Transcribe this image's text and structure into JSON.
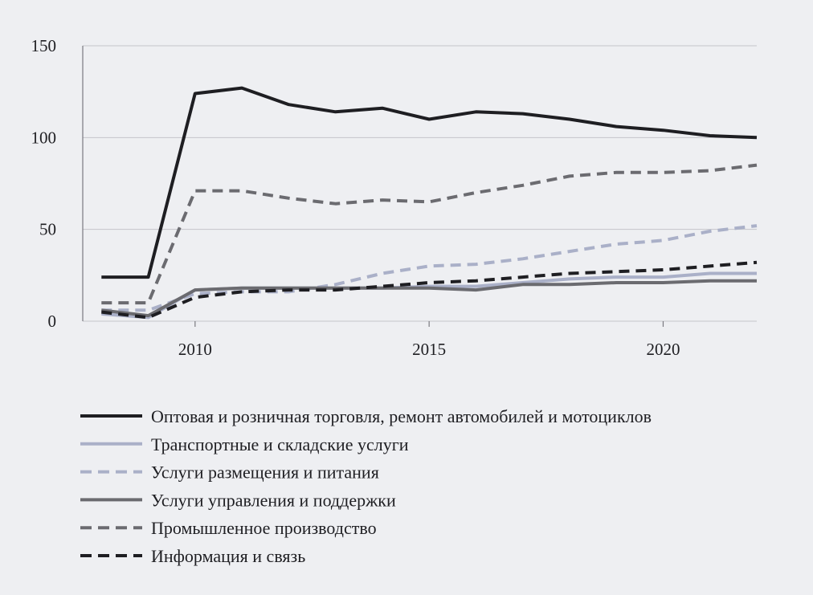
{
  "chart_data": {
    "type": "line",
    "title": "",
    "xlabel": "",
    "ylabel": "",
    "xlim": [
      2007.6,
      2022
    ],
    "ylim": [
      0,
      150
    ],
    "x_ticks": [
      "2010",
      "2015",
      "2020"
    ],
    "y_ticks": [
      "0",
      "50",
      "100",
      "150"
    ],
    "grid": "horizontal",
    "legend_position": "bottom",
    "x": [
      2008,
      2009,
      2010,
      2011,
      2012,
      2013,
      2014,
      2015,
      2016,
      2017,
      2018,
      2019,
      2020,
      2021,
      2022
    ],
    "series": [
      {
        "name": "Оптовая и розничная торговля, ремонт автомобилей и мотоциклов",
        "color": "#1e1e22",
        "dash": "solid",
        "values": [
          24,
          24,
          124,
          127,
          118,
          114,
          116,
          110,
          114,
          113,
          110,
          106,
          104,
          101,
          100
        ]
      },
      {
        "name": "Транспортные и складские услуги",
        "color": "#aab0c8",
        "dash": "solid",
        "values": [
          4,
          2,
          17,
          18,
          18,
          18,
          18,
          19,
          19,
          21,
          23,
          24,
          24,
          26,
          26
        ]
      },
      {
        "name": "Услуги размещения и питания",
        "color": "#aab0c8",
        "dash": "dashed",
        "values": [
          6,
          6,
          15,
          16,
          16,
          20,
          26,
          30,
          31,
          34,
          38,
          42,
          44,
          49,
          52
        ]
      },
      {
        "name": "Услуги управления и поддержки",
        "color": "#6b6b70",
        "dash": "solid",
        "values": [
          6,
          3,
          17,
          18,
          18,
          18,
          18,
          18,
          17,
          20,
          20,
          21,
          21,
          22,
          22
        ]
      },
      {
        "name": "Промышленное производство",
        "color": "#6b6b70",
        "dash": "dashed",
        "values": [
          10,
          10,
          71,
          71,
          67,
          64,
          66,
          65,
          70,
          74,
          79,
          81,
          81,
          82,
          85
        ]
      },
      {
        "name": "Информация и связь",
        "color": "#1e1e22",
        "dash": "dashed",
        "values": [
          5,
          2,
          13,
          16,
          17,
          17,
          19,
          21,
          22,
          24,
          26,
          27,
          28,
          30,
          32
        ]
      }
    ]
  }
}
